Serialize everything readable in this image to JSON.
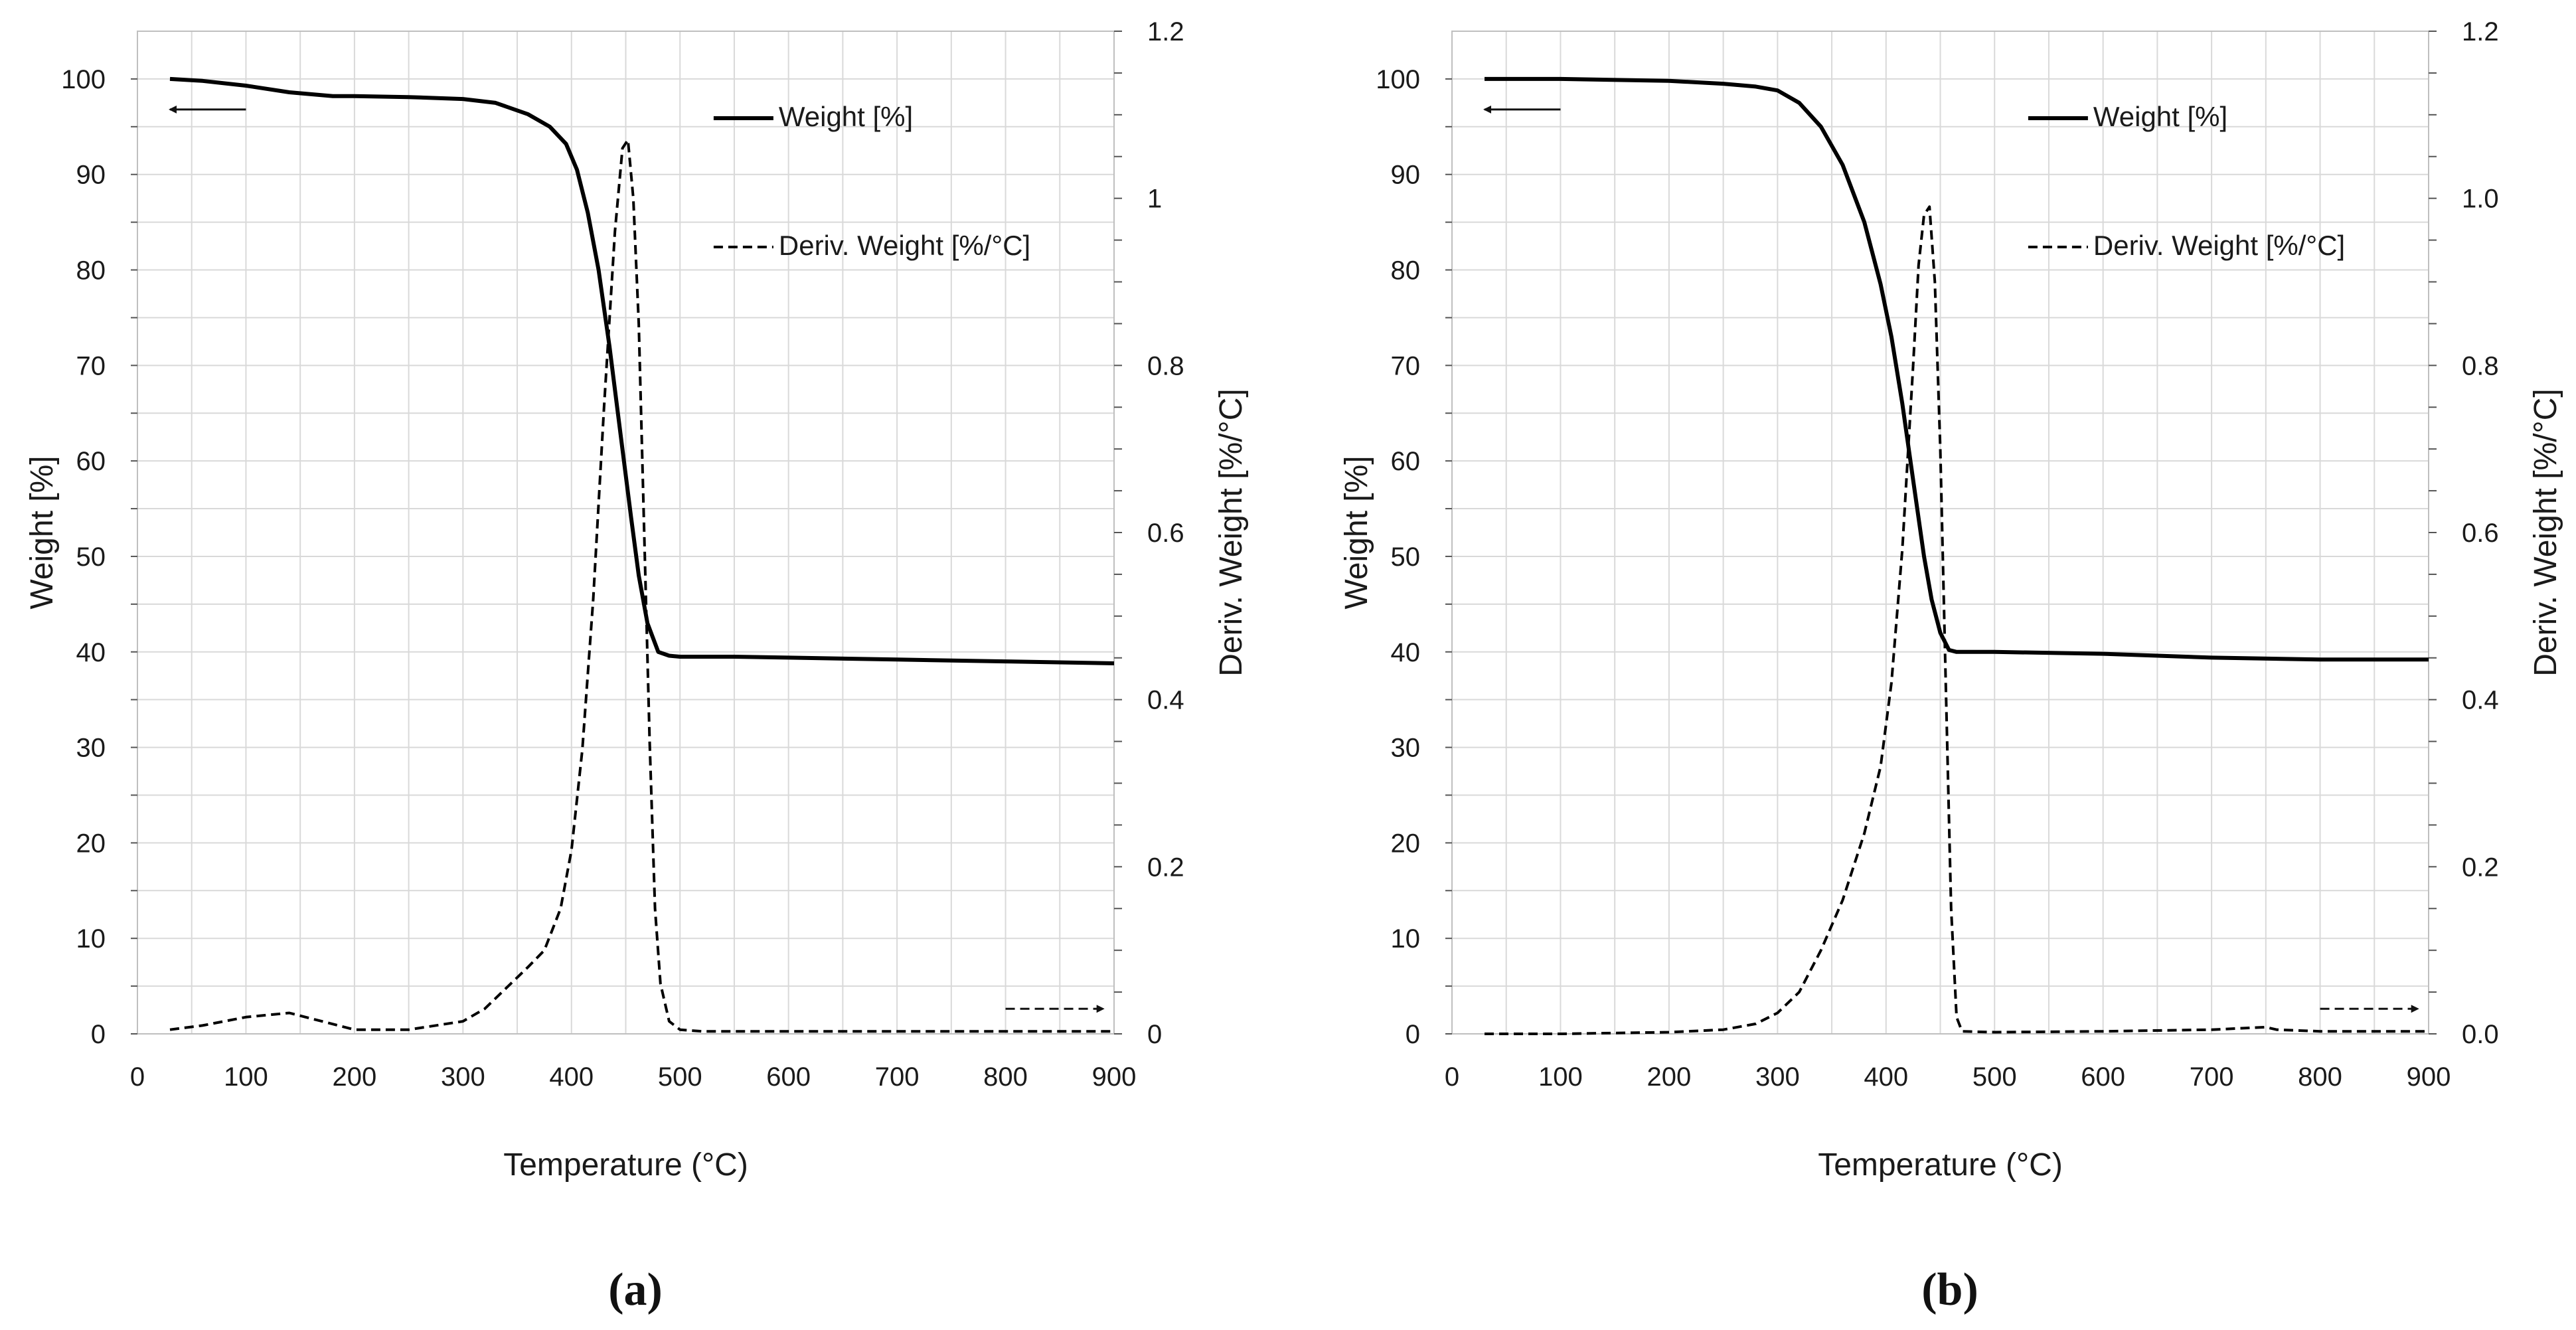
{
  "chart_data": [
    {
      "type": "line",
      "panel_label": "(a)",
      "xlabel": "Temperature (°C)",
      "ylabel": "Weight [%]",
      "y2label": "Deriv. Weight [%/°C]",
      "xlim": [
        0,
        900
      ],
      "ylim": [
        0,
        105
      ],
      "y2lim": [
        0,
        1.2
      ],
      "xticks": [
        "0",
        "100",
        "200",
        "300",
        "400",
        "500",
        "600",
        "700",
        "800",
        "900"
      ],
      "yticks": [
        "0",
        "10",
        "20",
        "30",
        "40",
        "50",
        "60",
        "70",
        "80",
        "90",
        "100"
      ],
      "y2ticks": [
        "0",
        "0.2",
        "0.4",
        "0.6",
        "0.8",
        "1",
        "1.2"
      ],
      "grid": true,
      "legend_position": "top-right",
      "series": [
        {
          "name": "Weight [%]",
          "axis": "left",
          "style": "solid",
          "x": [
            30,
            60,
            100,
            140,
            180,
            200,
            250,
            300,
            330,
            360,
            380,
            395,
            405,
            415,
            425,
            435,
            445,
            455,
            462,
            470,
            480,
            490,
            500,
            550,
            600,
            700,
            800,
            900
          ],
          "y": [
            100,
            99.8,
            99.3,
            98.6,
            98.2,
            98.2,
            98.1,
            97.9,
            97.5,
            96.3,
            95.0,
            93.2,
            90.5,
            86.0,
            80.0,
            72.0,
            63.0,
            54.0,
            48.0,
            43.0,
            40.0,
            39.6,
            39.5,
            39.5,
            39.4,
            39.2,
            39.0,
            38.8
          ]
        },
        {
          "name": "Deriv. Weight [%/°C]",
          "axis": "right",
          "style": "dashed",
          "x": [
            30,
            60,
            100,
            140,
            170,
            200,
            250,
            300,
            320,
            340,
            360,
            375,
            390,
            400,
            410,
            420,
            430,
            440,
            447,
            452,
            457,
            462,
            467,
            472,
            477,
            482,
            490,
            500,
            520,
            600,
            700,
            800,
            900
          ],
          "y": [
            0.005,
            0.01,
            0.02,
            0.025,
            0.015,
            0.005,
            0.005,
            0.015,
            0.03,
            0.055,
            0.08,
            0.1,
            0.15,
            0.22,
            0.34,
            0.52,
            0.75,
            0.96,
            1.06,
            1.07,
            1.0,
            0.85,
            0.6,
            0.35,
            0.15,
            0.06,
            0.015,
            0.005,
            0.003,
            0.003,
            0.003,
            0.003,
            0.003
          ]
        }
      ]
    },
    {
      "type": "line",
      "panel_label": "(b)",
      "xlabel": "Temperature (°C)",
      "ylabel": "Weight [%]",
      "y2label": "Deriv. Weight [%/°C]",
      "xlim": [
        0,
        900
      ],
      "ylim": [
        0,
        105
      ],
      "y2lim": [
        0,
        1.2
      ],
      "xticks": [
        "0",
        "100",
        "200",
        "300",
        "400",
        "500",
        "600",
        "700",
        "800",
        "900"
      ],
      "yticks": [
        "0",
        "10",
        "20",
        "30",
        "40",
        "50",
        "60",
        "70",
        "80",
        "90",
        "100"
      ],
      "y2ticks": [
        "0.0",
        "0.2",
        "0.4",
        "0.6",
        "0.8",
        "1.0",
        "1.2"
      ],
      "grid": true,
      "legend_position": "top-right",
      "series": [
        {
          "name": "Weight [%]",
          "axis": "left",
          "style": "solid",
          "x": [
            30,
            100,
            200,
            250,
            280,
            300,
            320,
            340,
            360,
            380,
            395,
            405,
            415,
            425,
            435,
            442,
            450,
            458,
            465,
            500,
            600,
            700,
            800,
            900
          ],
          "y": [
            100,
            100,
            99.8,
            99.5,
            99.2,
            98.8,
            97.5,
            95.0,
            91.0,
            85.0,
            78.5,
            73.0,
            66.0,
            58.0,
            50.0,
            45.5,
            42.0,
            40.2,
            40.0,
            40.0,
            39.8,
            39.4,
            39.2,
            39.2
          ]
        },
        {
          "name": "Deriv. Weight [%/°C]",
          "axis": "right",
          "style": "dashed",
          "x": [
            30,
            100,
            200,
            250,
            280,
            300,
            320,
            340,
            360,
            380,
            395,
            405,
            415,
            425,
            430,
            435,
            440,
            445,
            450,
            455,
            460,
            465,
            470,
            500,
            600,
            700,
            750,
            760,
            800,
            900
          ],
          "y": [
            0.0,
            0.0,
            0.002,
            0.005,
            0.012,
            0.025,
            0.05,
            0.1,
            0.16,
            0.24,
            0.32,
            0.42,
            0.58,
            0.8,
            0.92,
            0.98,
            0.99,
            0.9,
            0.7,
            0.42,
            0.15,
            0.02,
            0.003,
            0.002,
            0.003,
            0.005,
            0.008,
            0.005,
            0.003,
            0.003
          ]
        }
      ]
    }
  ]
}
